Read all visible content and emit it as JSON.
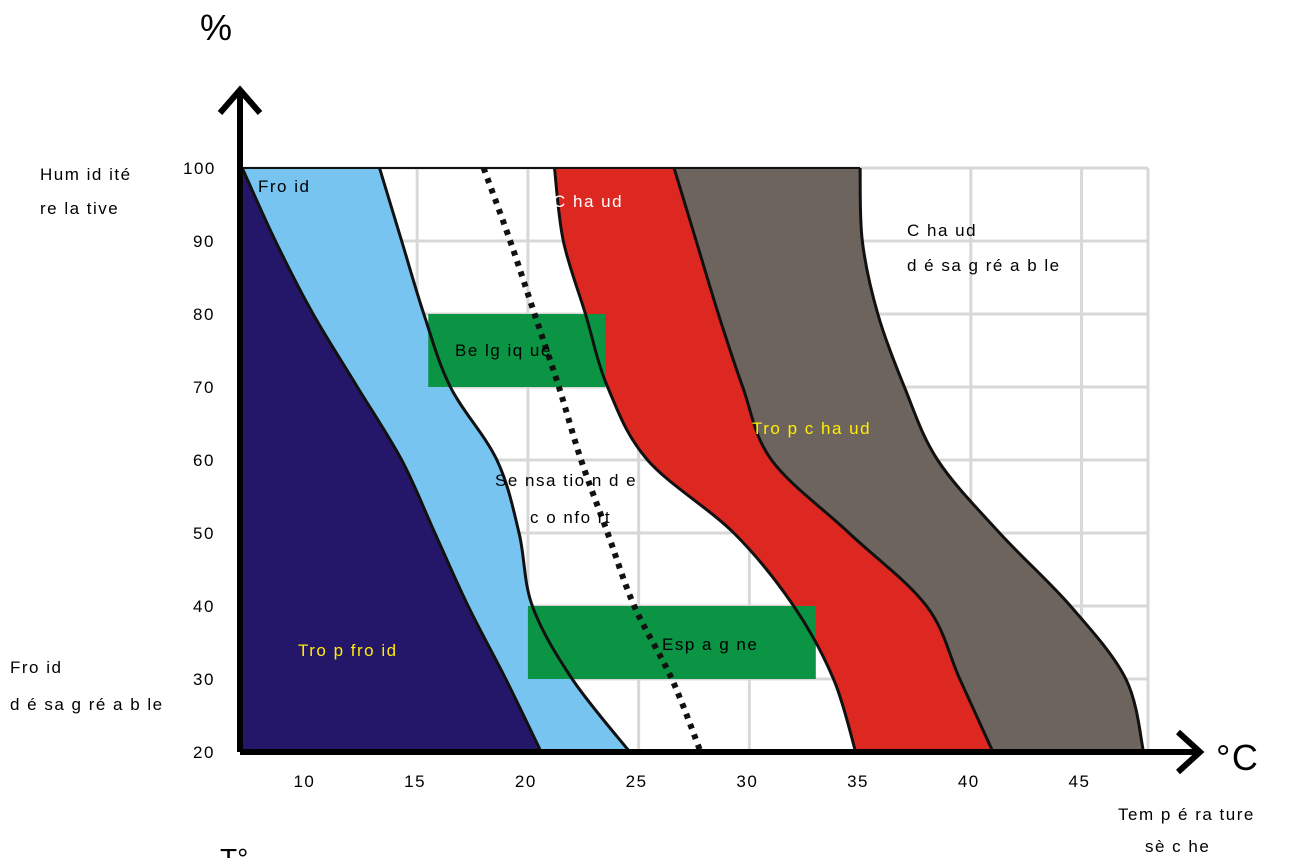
{
  "chart_data": {
    "type": "area",
    "xlabel": "Tempérture sèche",
    "xlabel_lines": [
      "Tem p é ra ture",
      "sè c he"
    ],
    "ylabel_lines": [
      "Hum id ité",
      "re la tive"
    ],
    "y_axis_unit": "%",
    "x_axis_unit": "°C",
    "xticks": [
      "10",
      "15",
      "20",
      "25",
      "30",
      "35",
      "40",
      "45"
    ],
    "yticks": [
      "20",
      "30",
      "40",
      "50",
      "60",
      "70",
      "80",
      "90",
      "100"
    ],
    "xlim": [
      7,
      48
    ],
    "ylim": [
      20,
      100
    ],
    "grid": true,
    "zones": [
      {
        "name": "Trop froid",
        "color": "#24176a"
      },
      {
        "name": "Froid",
        "color": "#78c4f0"
      },
      {
        "name": "Sensation de confort",
        "color": "#ffffff"
      },
      {
        "name": "Chaud",
        "color": "#dc2820"
      },
      {
        "name": "Trop chaud",
        "color": "#6e645e"
      },
      {
        "name": "Chaud désagréable",
        "color": "#ffffff"
      }
    ],
    "regions": [
      {
        "name": "Belgique",
        "x": [
          15.5,
          23.5
        ],
        "y": [
          70,
          80
        ],
        "color": "#0a9444"
      },
      {
        "name": "Espagne",
        "x": [
          20,
          33
        ],
        "y": [
          30,
          40
        ],
        "color": "#0a9444"
      }
    ]
  },
  "labels": {
    "percent": "%",
    "degc": "°C",
    "hum_1": "Hum id ité",
    "hum_2": "re la tive",
    "froid_des_1": "Fro id",
    "froid_des_2": "d é sa g ré a b le",
    "temp_1": "Tem p é ra ture",
    "temp_2": "sè c he",
    "froid": "Fro id",
    "trop_froid": "Tro p fro id",
    "belgique": "Be lg iq ue",
    "sens_1": "Se nsa tio n d e",
    "sens_2": "c o nfo rt",
    "chaud": "C ha ud",
    "trop_chaud": "Tro p c ha ud",
    "chaud_des_1": "C ha ud",
    "chaud_des_2": "d é sa g ré a b le",
    "espagne": "Esp a g ne",
    "bottom_t": "T°"
  }
}
